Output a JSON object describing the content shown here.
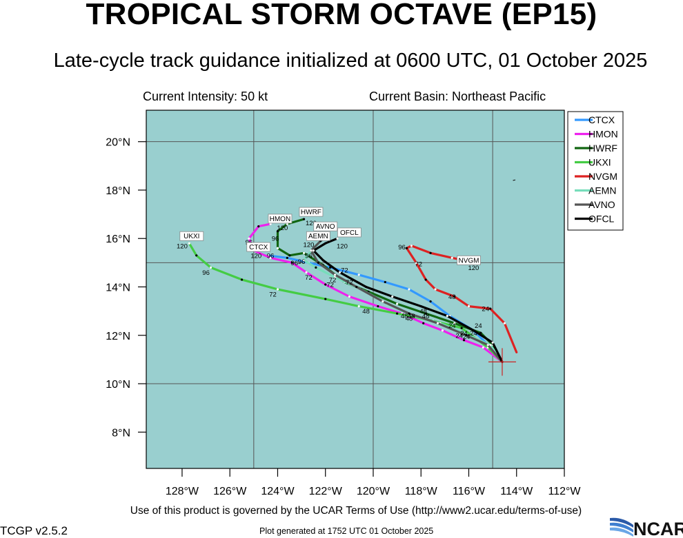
{
  "header": {
    "title": "TROPICAL STORM OCTAVE (EP15)",
    "subtitle": "Late-cycle track guidance initialized at 0600 UTC, 01 October 2025",
    "intensity": "Current Intensity: 50 kt",
    "basin": "Current Basin: Northeast Pacific"
  },
  "footer": {
    "terms": "Use of this product is governed by the UCAR Terms of Use (http://www2.ucar.edu/terms-of-use)",
    "version": "TCGP v2.5.2",
    "generated": "Plot generated at 1752 UTC   01 October 2025",
    "logo_text": "NCAR"
  },
  "colors": {
    "ocean": "#99cfcf",
    "grid": "#555555",
    "storm_marker": "#cc2222"
  },
  "chart_data": {
    "type": "map-track",
    "xlim": [
      -129.5,
      -112
    ],
    "ylim": [
      6.5,
      21.3
    ],
    "lon_ticks": [
      {
        "v": -128,
        "label": "128°W"
      },
      {
        "v": -126,
        "label": "126°W"
      },
      {
        "v": -124,
        "label": "124°W"
      },
      {
        "v": -122,
        "label": "122°W"
      },
      {
        "v": -120,
        "label": "120°W"
      },
      {
        "v": -118,
        "label": "118°W"
      },
      {
        "v": -116,
        "label": "116°W"
      },
      {
        "v": -114,
        "label": "114°W"
      },
      {
        "v": -112,
        "label": "112°W"
      }
    ],
    "lat_ticks": [
      {
        "v": 8,
        "label": "8°N"
      },
      {
        "v": 10,
        "label": "10°N"
      },
      {
        "v": 12,
        "label": "12°N"
      },
      {
        "v": 14,
        "label": "14°N"
      },
      {
        "v": 16,
        "label": "16°N"
      },
      {
        "v": 18,
        "label": "18°N"
      },
      {
        "v": 20,
        "label": "20°N"
      }
    ],
    "gridlines": {
      "lon": [
        -125,
        -120,
        -115
      ],
      "lat": [
        10,
        15,
        20
      ]
    },
    "current_position": {
      "lon": -114.6,
      "lat": 10.9
    },
    "legend_position": "top-right",
    "series": [
      {
        "name": "CTCX",
        "color": "#3399ff",
        "points": [
          [
            -114.6,
            10.9
          ],
          [
            -115.1,
            11.5
          ],
          [
            -115.8,
            12.2
          ],
          [
            -116.8,
            12.8
          ],
          [
            -117.6,
            13.4
          ],
          [
            -118.5,
            13.9
          ],
          [
            -119.5,
            14.2
          ],
          [
            -120.6,
            14.5
          ],
          [
            -121.8,
            14.8
          ],
          [
            -122.7,
            15.0
          ],
          [
            -123.6,
            15.2
          ],
          [
            -124.4,
            15.3
          ]
        ],
        "hour_labels": [
          {
            "h": "120",
            "lon": -124.9,
            "lat": 15.2
          }
        ],
        "end_label": {
          "text": "CTCX",
          "lon": -124.8,
          "lat": 15.55
        }
      },
      {
        "name": "HMON",
        "color": "#ee22ee",
        "points": [
          [
            -114.6,
            10.9
          ],
          [
            -115.4,
            11.5
          ],
          [
            -116.2,
            11.8
          ],
          [
            -117.1,
            12.2
          ],
          [
            -117.9,
            12.5
          ],
          [
            -118.8,
            12.9
          ],
          [
            -119.8,
            13.2
          ],
          [
            -121.0,
            13.6
          ],
          [
            -122.0,
            14.1
          ],
          [
            -122.8,
            14.6
          ],
          [
            -123.4,
            15.0
          ],
          [
            -124.3,
            15.2
          ],
          [
            -125.0,
            15.5
          ],
          [
            -125.2,
            16.0
          ],
          [
            -124.8,
            16.5
          ],
          [
            -124.3,
            16.6
          ]
        ],
        "hour_labels": [
          {
            "h": "120",
            "lon": -123.8,
            "lat": 16.35
          },
          {
            "h": "96",
            "lon": -125.2,
            "lat": 15.75
          },
          {
            "h": "96",
            "lon": -124.3,
            "lat": 15.2
          },
          {
            "h": "72",
            "lon": -122.7,
            "lat": 14.3
          },
          {
            "h": "48",
            "lon": -118.7,
            "lat": 12.7
          },
          {
            "h": "24",
            "lon": -116.4,
            "lat": 11.9
          }
        ],
        "end_label": {
          "text": "HMON",
          "lon": -123.9,
          "lat": 16.72
        }
      },
      {
        "name": "HWRF",
        "color": "#116611",
        "points": [
          [
            -114.6,
            10.9
          ],
          [
            -115.0,
            11.6
          ],
          [
            -115.5,
            12.1
          ],
          [
            -116.6,
            12.5
          ],
          [
            -117.8,
            12.9
          ],
          [
            -119.0,
            13.3
          ],
          [
            -120.2,
            13.8
          ],
          [
            -121.2,
            14.2
          ],
          [
            -122.1,
            14.9
          ],
          [
            -122.9,
            15.4
          ],
          [
            -123.5,
            15.3
          ],
          [
            -124.0,
            15.6
          ],
          [
            -124.0,
            16.3
          ],
          [
            -123.6,
            16.6
          ],
          [
            -122.9,
            16.8
          ]
        ],
        "hour_labels": [
          {
            "h": "120",
            "lon": -122.6,
            "lat": 16.55
          },
          {
            "h": "96",
            "lon": -124.1,
            "lat": 15.9
          },
          {
            "h": "72",
            "lon": -121.0,
            "lat": 14.1
          },
          {
            "h": "48",
            "lon": -117.8,
            "lat": 12.7
          },
          {
            "h": "24",
            "lon": -116.2,
            "lat": 12.0
          }
        ],
        "end_label": {
          "text": "HWRF",
          "lon": -122.6,
          "lat": 17.0
        }
      },
      {
        "name": "UKXI",
        "color": "#44cc44",
        "points": [
          [
            -114.6,
            10.9
          ],
          [
            -115.2,
            11.5
          ],
          [
            -116.3,
            12.3
          ],
          [
            -117.5,
            12.6
          ],
          [
            -119.0,
            12.9
          ],
          [
            -120.6,
            13.2
          ],
          [
            -122.0,
            13.5
          ],
          [
            -124.0,
            13.9
          ],
          [
            -125.5,
            14.3
          ],
          [
            -126.8,
            14.8
          ],
          [
            -127.4,
            15.3
          ],
          [
            -127.7,
            15.8
          ]
        ],
        "hour_labels": [
          {
            "h": "120",
            "lon": -128.0,
            "lat": 15.6
          },
          {
            "h": "96",
            "lon": -127.0,
            "lat": 14.5
          },
          {
            "h": "72",
            "lon": -124.2,
            "lat": 13.6
          },
          {
            "h": "48",
            "lon": -120.3,
            "lat": 12.9
          },
          {
            "h": "24",
            "lon": -116.7,
            "lat": 12.3
          }
        ],
        "end_label": {
          "text": "UKXI",
          "lon": -127.6,
          "lat": 16.0
        }
      },
      {
        "name": "NVGM",
        "color": "#dd2222",
        "points": [
          [
            -114.0,
            11.3
          ],
          [
            -114.5,
            12.5
          ],
          [
            -115.1,
            13.1
          ],
          [
            -116.0,
            13.2
          ],
          [
            -116.6,
            13.6
          ],
          [
            -117.4,
            13.9
          ],
          [
            -117.8,
            14.3
          ],
          [
            -118.2,
            15.0
          ],
          [
            -118.6,
            15.6
          ],
          [
            -118.4,
            15.7
          ],
          [
            -117.6,
            15.4
          ],
          [
            -116.7,
            15.2
          ],
          [
            -115.7,
            15.0
          ]
        ],
        "hour_labels": [
          {
            "h": "120",
            "lon": -115.8,
            "lat": 14.7
          },
          {
            "h": "96",
            "lon": -118.8,
            "lat": 15.55
          },
          {
            "h": "72",
            "lon": -118.1,
            "lat": 14.85
          },
          {
            "h": "48",
            "lon": -116.7,
            "lat": 13.5
          },
          {
            "h": "24",
            "lon": -115.3,
            "lat": 13.0
          }
        ],
        "end_label": {
          "text": "NVGM",
          "lon": -116.0,
          "lat": 15.0
        }
      },
      {
        "name": "AEMN",
        "color": "#77ddbb",
        "points": [
          [
            -114.6,
            10.9
          ],
          [
            -115.1,
            11.6
          ],
          [
            -116.0,
            12.0
          ],
          [
            -117.2,
            12.5
          ],
          [
            -118.3,
            12.8
          ],
          [
            -119.4,
            13.3
          ],
          [
            -120.5,
            13.9
          ],
          [
            -121.6,
            14.4
          ],
          [
            -122.4,
            14.8
          ],
          [
            -122.9,
            15.1
          ],
          [
            -122.5,
            15.6
          ],
          [
            -122.2,
            15.9
          ]
        ],
        "hour_labels": [
          {
            "h": "120",
            "lon": -122.7,
            "lat": 15.65
          },
          {
            "h": "96",
            "lon": -123.3,
            "lat": 14.9
          },
          {
            "h": "72",
            "lon": -121.8,
            "lat": 14.0
          },
          {
            "h": "48",
            "lon": -118.5,
            "lat": 12.6
          },
          {
            "h": "24",
            "lon": -116.1,
            "lat": 11.85
          }
        ],
        "end_label": {
          "text": "AEMN",
          "lon": -122.3,
          "lat": 16.0
        }
      },
      {
        "name": "AVNO",
        "color": "#555555",
        "points": [
          [
            -114.6,
            10.9
          ],
          [
            -115.2,
            11.6
          ],
          [
            -116.1,
            12.0
          ],
          [
            -117.3,
            12.5
          ],
          [
            -118.5,
            12.9
          ],
          [
            -119.6,
            13.4
          ],
          [
            -120.7,
            14.0
          ],
          [
            -121.6,
            14.5
          ],
          [
            -122.3,
            15.0
          ],
          [
            -122.6,
            15.5
          ],
          [
            -122.2,
            15.9
          ],
          [
            -121.9,
            16.1
          ]
        ],
        "hour_labels": [
          {
            "h": "120",
            "lon": -122.1,
            "lat": 15.9
          },
          {
            "h": "96",
            "lon": -123.0,
            "lat": 14.95
          },
          {
            "h": "72",
            "lon": -121.7,
            "lat": 14.2
          },
          {
            "h": "48",
            "lon": -118.4,
            "lat": 12.7
          },
          {
            "h": "24",
            "lon": -115.8,
            "lat": 12.0
          }
        ],
        "end_label": {
          "text": "AVNO",
          "lon": -122.0,
          "lat": 16.4
        }
      },
      {
        "name": "OFCL",
        "color": "#000000",
        "points": [
          [
            -114.6,
            10.9
          ],
          [
            -115.0,
            11.7
          ],
          [
            -115.8,
            12.2
          ],
          [
            -116.9,
            12.8
          ],
          [
            -118.0,
            13.2
          ],
          [
            -119.2,
            13.6
          ],
          [
            -120.3,
            14.0
          ],
          [
            -121.4,
            14.6
          ],
          [
            -122.1,
            15.1
          ],
          [
            -122.5,
            15.5
          ],
          [
            -122.0,
            15.8
          ],
          [
            -121.5,
            16.0
          ]
        ],
        "hour_labels": [
          {
            "h": "120",
            "lon": -121.3,
            "lat": 15.6
          },
          {
            "h": "96",
            "lon": -122.7,
            "lat": 15.2
          },
          {
            "h": "72",
            "lon": -121.2,
            "lat": 14.6
          },
          {
            "h": "48",
            "lon": -117.9,
            "lat": 12.9
          },
          {
            "h": "24",
            "lon": -115.6,
            "lat": 12.3
          }
        ],
        "end_label": {
          "text": "OFCL",
          "lon": -121.0,
          "lat": 16.15
        }
      }
    ]
  }
}
